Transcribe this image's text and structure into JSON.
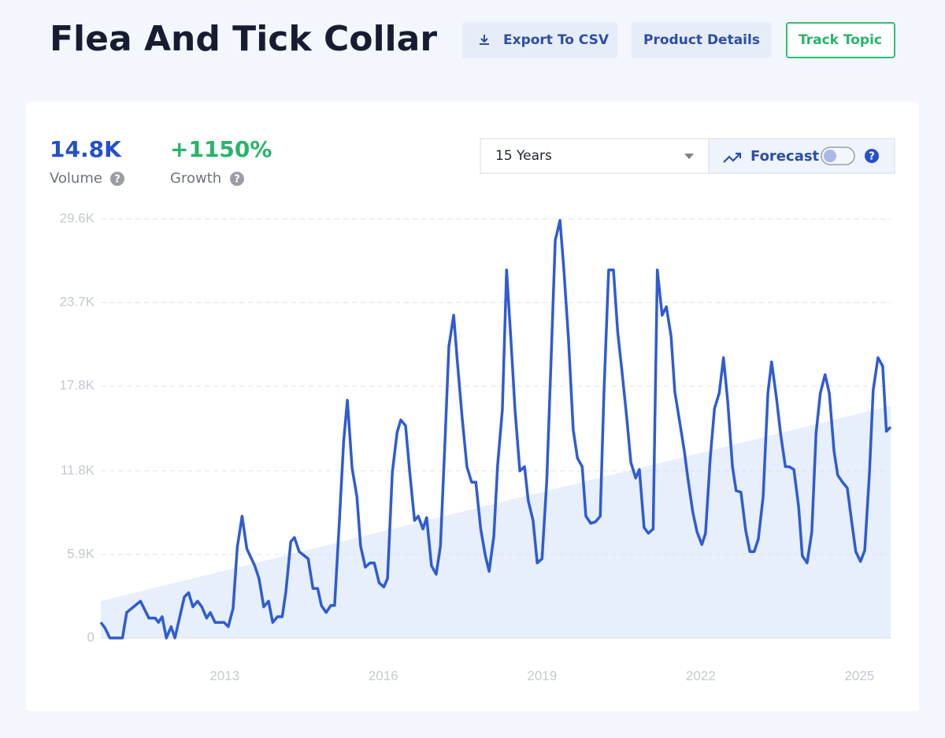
{
  "header": {
    "title": "Flea And Tick Collar",
    "buttons": [
      "Export To CSV",
      "Product Details",
      "Track Topic"
    ]
  },
  "stats": [
    {
      "value": "14.8K",
      "label": "Volume"
    },
    {
      "value": "+1150%",
      "label": "Growth"
    }
  ],
  "controls": {
    "range": "15 Years",
    "forecast": "Forecast"
  },
  "help_icon": "?",
  "chart_data": {
    "type": "line",
    "color": "#2f5bd3",
    "grid": true,
    "xlim": [
      2010.66,
      2025.59
    ],
    "ylim": [
      0,
      29600
    ],
    "xticks": [
      2013,
      2016,
      2019,
      2022,
      2025
    ],
    "yticks": [
      0,
      {
        "value": 5900,
        "label": "5.9K"
      },
      {
        "value": 11800,
        "label": "11.8K"
      },
      {
        "value": 17800,
        "label": "17.8K"
      },
      {
        "value": 23700,
        "label": "23.7K"
      },
      {
        "value": 29600,
        "label": "29.6K"
      }
    ],
    "trend": {
      "color": "#e6effb",
      "x": [
        2010.66,
        2025.59
      ],
      "values": [
        2600,
        16400
      ]
    },
    "x": [
      2010.66,
      2010.74,
      2010.83,
      2011.07,
      2011.15,
      2011.41,
      2011.57,
      2011.69,
      2011.75,
      2011.82,
      2011.9,
      2011.99,
      2012.06,
      2012.24,
      2012.32,
      2012.4,
      2012.49,
      2012.57,
      2012.66,
      2012.73,
      2012.82,
      2012.99,
      2013.07,
      2013.16,
      2013.24,
      2013.33,
      2013.42,
      2013.57,
      2013.65,
      2013.74,
      2013.83,
      2013.91,
      2014.0,
      2014.09,
      2014.16,
      2014.25,
      2014.32,
      2014.41,
      2014.58,
      2014.67,
      2014.76,
      2014.83,
      2014.92,
      2015.01,
      2015.08,
      2015.17,
      2015.25,
      2015.32,
      2015.41,
      2015.5,
      2015.57,
      2015.66,
      2015.75,
      2015.83,
      2015.92,
      2016.01,
      2016.08,
      2016.17,
      2016.26,
      2016.33,
      2016.42,
      2016.5,
      2016.59,
      2016.66,
      2016.75,
      2016.82,
      2016.91,
      2017.0,
      2017.08,
      2017.17,
      2017.24,
      2017.33,
      2017.4,
      2017.49,
      2017.58,
      2017.67,
      2017.75,
      2017.84,
      2017.93,
      2018.0,
      2018.09,
      2018.16,
      2018.25,
      2018.33,
      2018.42,
      2018.49,
      2018.58,
      2018.67,
      2018.74,
      2018.83,
      2018.91,
      2019.0,
      2019.09,
      2019.16,
      2019.25,
      2019.34,
      2019.41,
      2019.5,
      2019.59,
      2019.67,
      2019.76,
      2019.83,
      2019.92,
      2020.01,
      2020.1,
      2020.17,
      2020.26,
      2020.35,
      2020.43,
      2020.51,
      2020.6,
      2020.68,
      2020.77,
      2020.84,
      2020.93,
      2021.01,
      2021.1,
      2021.18,
      2021.27,
      2021.35,
      2021.44,
      2021.51,
      2021.6,
      2021.69,
      2021.76,
      2021.85,
      2021.93,
      2022.02,
      2022.09,
      2022.18,
      2022.26,
      2022.35,
      2022.43,
      2022.51,
      2022.6,
      2022.67,
      2022.76,
      2022.85,
      2022.93,
      2023.01,
      2023.09,
      2023.18,
      2023.27,
      2023.34,
      2023.43,
      2023.51,
      2023.6,
      2023.67,
      2023.76,
      2023.85,
      2023.92,
      2024.01,
      2024.1,
      2024.18,
      2024.26,
      2024.35,
      2024.43,
      2024.52,
      2024.59,
      2024.68,
      2024.77,
      2024.85,
      2024.93,
      2025.02,
      2025.1,
      2025.19,
      2025.26,
      2025.35,
      2025.44,
      2025.51,
      2025.59
    ],
    "values": [
      1100,
      700,
      0,
      0,
      1800,
      2600,
      1400,
      1400,
      1100,
      1500,
      0,
      800,
      0,
      2900,
      3200,
      2200,
      2600,
      2200,
      1400,
      1800,
      1100,
      1100,
      800,
      2100,
      6400,
      8600,
      6300,
      5100,
      4200,
      2200,
      2600,
      1100,
      1500,
      1500,
      3300,
      6800,
      7100,
      6100,
      5600,
      3500,
      3500,
      2300,
      1800,
      2300,
      2300,
      8300,
      13900,
      16800,
      12000,
      10000,
      6500,
      5000,
      5300,
      5300,
      3900,
      3600,
      4200,
      11700,
      14500,
      15400,
      15000,
      11700,
      8300,
      8600,
      7700,
      8500,
      5100,
      4500,
      6500,
      14200,
      20600,
      22800,
      19500,
      15600,
      12100,
      11000,
      11000,
      7700,
      5800,
      4700,
      7200,
      12200,
      16100,
      26000,
      20600,
      16100,
      11800,
      12100,
      9700,
      8300,
      5300,
      5600,
      11100,
      18400,
      28100,
      29500,
      26200,
      21100,
      14700,
      12700,
      12100,
      8600,
      8100,
      8200,
      8600,
      17300,
      26000,
      26000,
      21600,
      18900,
      15600,
      12400,
      11300,
      11900,
      7800,
      7400,
      7700,
      26000,
      22800,
      23400,
      21300,
      17400,
      15300,
      13200,
      11200,
      8900,
      7500,
      6600,
      7400,
      12700,
      16200,
      17300,
      19800,
      16700,
      12100,
      10400,
      10300,
      7600,
      6100,
      6100,
      7000,
      10000,
      17300,
      19500,
      17000,
      14400,
      12100,
      12100,
      11900,
      9300,
      5800,
      5300,
      7500,
      14500,
      17300,
      18600,
      17300,
      13200,
      11500,
      11000,
      10600,
      8300,
      6100,
      5400,
      6200,
      11700,
      17500,
      19800,
      19200,
      14600,
      14900
    ]
  }
}
